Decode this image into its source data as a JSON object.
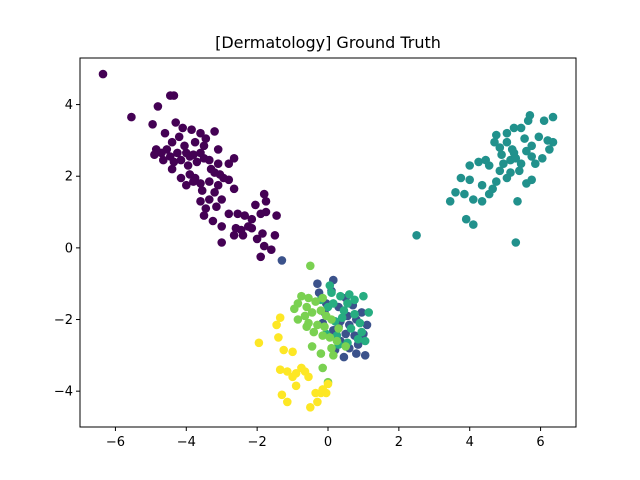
{
  "chart_data": {
    "type": "scatter",
    "title": "[Dermatology] Ground Truth",
    "xlabel": "",
    "ylabel": "",
    "xlim": [
      -7.0,
      7.0
    ],
    "ylim": [
      -5.0,
      5.3
    ],
    "xticks": [
      -6,
      -4,
      -2,
      0,
      2,
      4,
      6
    ],
    "yticks": [
      -4,
      -2,
      0,
      2,
      4
    ],
    "xtick_labels": [
      "−6",
      "−4",
      "−2",
      "0",
      "2",
      "4",
      "6"
    ],
    "ytick_labels": [
      "−4",
      "−2",
      "0",
      "2",
      "4"
    ],
    "grid": false,
    "legend": "none",
    "series": [
      {
        "color": "#440154",
        "points": [
          [
            -6.35,
            4.85
          ],
          [
            -5.55,
            3.65
          ],
          [
            -4.8,
            3.95
          ],
          [
            -4.95,
            3.45
          ],
          [
            -4.45,
            4.25
          ],
          [
            -4.35,
            4.25
          ],
          [
            -4.6,
            3.2
          ],
          [
            -4.3,
            3.5
          ],
          [
            -4.1,
            3.35
          ],
          [
            -4.2,
            3.1
          ],
          [
            -3.85,
            3.3
          ],
          [
            -3.6,
            3.2
          ],
          [
            -3.45,
            3.05
          ],
          [
            -3.2,
            3.25
          ],
          [
            -3.1,
            2.75
          ],
          [
            -3.5,
            2.85
          ],
          [
            -3.75,
            2.95
          ],
          [
            -3.9,
            2.55
          ],
          [
            -4.05,
            2.85
          ],
          [
            -4.25,
            2.65
          ],
          [
            -4.4,
            2.95
          ],
          [
            -4.55,
            2.75
          ],
          [
            -4.7,
            2.65
          ],
          [
            -4.85,
            2.75
          ],
          [
            -4.9,
            2.6
          ],
          [
            -4.65,
            2.45
          ],
          [
            -4.45,
            2.55
          ],
          [
            -4.35,
            2.4
          ],
          [
            -4.15,
            2.45
          ],
          [
            -4.0,
            2.65
          ],
          [
            -3.8,
            2.6
          ],
          [
            -3.6,
            2.65
          ],
          [
            -3.5,
            2.5
          ],
          [
            -3.35,
            2.45
          ],
          [
            -3.7,
            2.4
          ],
          [
            -3.95,
            2.3
          ],
          [
            -3.3,
            2.2
          ],
          [
            -3.1,
            2.35
          ],
          [
            -2.8,
            2.35
          ],
          [
            -2.65,
            2.5
          ],
          [
            -3.9,
            2.05
          ],
          [
            -3.75,
            1.95
          ],
          [
            -4.15,
            1.95
          ],
          [
            -4.0,
            1.75
          ],
          [
            -3.8,
            1.85
          ],
          [
            -3.6,
            1.8
          ],
          [
            -3.55,
            1.6
          ],
          [
            -3.35,
            1.85
          ],
          [
            -3.1,
            1.75
          ],
          [
            -3.2,
            1.55
          ],
          [
            -3.05,
            2.05
          ],
          [
            -2.8,
            1.9
          ],
          [
            -2.65,
            1.65
          ],
          [
            -3.35,
            1.35
          ],
          [
            -3.0,
            1.35
          ],
          [
            -3.15,
            1.15
          ],
          [
            -3.45,
            1.1
          ],
          [
            -3.5,
            0.9
          ],
          [
            -3.25,
            0.75
          ],
          [
            -3.0,
            0.6
          ],
          [
            -2.8,
            0.95
          ],
          [
            -2.55,
            0.95
          ],
          [
            -2.35,
            0.9
          ],
          [
            -2.15,
            0.8
          ],
          [
            -1.9,
            0.95
          ],
          [
            -1.75,
            1.0
          ],
          [
            -1.45,
            0.9
          ],
          [
            -1.75,
            1.3
          ],
          [
            -1.8,
            1.5
          ],
          [
            -2.05,
            1.2
          ],
          [
            -2.6,
            0.55
          ],
          [
            -2.4,
            0.35
          ],
          [
            -2.15,
            0.55
          ],
          [
            -2.0,
            0.25
          ],
          [
            -1.8,
            0.05
          ],
          [
            -1.6,
            -0.05
          ],
          [
            -1.5,
            0.35
          ],
          [
            -1.85,
            0.4
          ],
          [
            -2.45,
            0.5
          ],
          [
            -2.65,
            0.35
          ],
          [
            -2.25,
            0.6
          ],
          [
            -1.9,
            -0.25
          ],
          [
            -3.0,
            0.15
          ],
          [
            -3.6,
            1.3
          ],
          [
            -4.4,
            2.2
          ],
          [
            -3.2,
            2.1
          ],
          [
            -2.95,
            1.95
          ]
        ]
      },
      {
        "color": "#3b528b",
        "points": [
          [
            -1.3,
            -0.35
          ],
          [
            0.15,
            -0.9
          ],
          [
            -0.3,
            -1.0
          ],
          [
            0.5,
            -1.4
          ],
          [
            0.7,
            -1.6
          ],
          [
            0.3,
            -1.65
          ],
          [
            -0.05,
            -1.55
          ],
          [
            0.95,
            -1.8
          ],
          [
            0.8,
            -2.0
          ],
          [
            0.6,
            -2.15
          ],
          [
            0.35,
            -2.05
          ],
          [
            0.15,
            -2.3
          ],
          [
            -0.15,
            -2.1
          ],
          [
            0.5,
            -2.4
          ],
          [
            0.75,
            -2.45
          ],
          [
            1.0,
            -2.4
          ],
          [
            0.85,
            -2.7
          ],
          [
            0.6,
            -2.8
          ],
          [
            0.35,
            -2.6
          ],
          [
            0.2,
            -2.85
          ],
          [
            0.45,
            -3.05
          ],
          [
            0.8,
            -2.95
          ],
          [
            1.05,
            -3.0
          ],
          [
            0.1,
            -1.2
          ],
          [
            -0.25,
            -1.25
          ],
          [
            -0.1,
            -1.8
          ],
          [
            0.55,
            -1.9
          ],
          [
            1.1,
            -2.15
          ],
          [
            0.3,
            -2.2
          ]
        ]
      },
      {
        "color": "#21918c",
        "points": [
          [
            4.75,
            3.15
          ],
          [
            5.05,
            3.2
          ],
          [
            5.25,
            3.35
          ],
          [
            5.45,
            3.35
          ],
          [
            5.65,
            3.55
          ],
          [
            5.7,
            3.7
          ],
          [
            6.1,
            3.55
          ],
          [
            6.35,
            3.65
          ],
          [
            5.05,
            2.95
          ],
          [
            4.85,
            2.8
          ],
          [
            4.7,
            2.95
          ],
          [
            5.55,
            3.05
          ],
          [
            5.95,
            3.1
          ],
          [
            6.2,
            3.0
          ],
          [
            6.35,
            2.95
          ],
          [
            6.25,
            2.75
          ],
          [
            5.75,
            2.85
          ],
          [
            5.25,
            2.65
          ],
          [
            5.15,
            2.45
          ],
          [
            4.95,
            2.35
          ],
          [
            5.45,
            2.35
          ],
          [
            5.75,
            2.55
          ],
          [
            6.05,
            2.5
          ],
          [
            5.85,
            2.35
          ],
          [
            5.4,
            2.15
          ],
          [
            5.15,
            2.1
          ],
          [
            4.85,
            2.15
          ],
          [
            4.55,
            2.3
          ],
          [
            4.25,
            2.4
          ],
          [
            4.0,
            2.3
          ],
          [
            4.45,
            2.45
          ],
          [
            3.75,
            1.95
          ],
          [
            4.0,
            1.9
          ],
          [
            4.35,
            1.75
          ],
          [
            4.75,
            1.85
          ],
          [
            5.05,
            1.95
          ],
          [
            5.6,
            1.8
          ],
          [
            5.75,
            1.9
          ],
          [
            4.65,
            1.65
          ],
          [
            4.55,
            1.5
          ],
          [
            3.85,
            1.5
          ],
          [
            3.6,
            1.55
          ],
          [
            3.45,
            1.3
          ],
          [
            4.1,
            1.35
          ],
          [
            4.35,
            1.3
          ],
          [
            5.35,
            1.3
          ],
          [
            3.9,
            0.8
          ],
          [
            4.1,
            0.65
          ],
          [
            2.5,
            0.35
          ],
          [
            5.3,
            0.15
          ],
          [
            5.2,
            2.75
          ],
          [
            4.9,
            2.6
          ],
          [
            5.6,
            2.7
          ],
          [
            5.3,
            2.5
          ]
        ]
      },
      {
        "color": "#27ad81",
        "points": [
          [
            0.05,
            -1.05
          ],
          [
            0.35,
            -1.35
          ],
          [
            0.55,
            -1.55
          ],
          [
            0.75,
            -1.45
          ],
          [
            1.0,
            -1.35
          ],
          [
            1.15,
            -1.8
          ],
          [
            0.9,
            -2.1
          ],
          [
            0.65,
            -2.25
          ],
          [
            0.4,
            -1.95
          ],
          [
            0.2,
            -2.05
          ],
          [
            0.55,
            -2.65
          ],
          [
            0.85,
            -2.55
          ],
          [
            1.05,
            -2.6
          ],
          [
            0.25,
            -2.45
          ],
          [
            0.0,
            -1.65
          ],
          [
            -0.2,
            -1.45
          ],
          [
            0.15,
            -1.55
          ],
          [
            0.45,
            -1.75
          ],
          [
            0.75,
            -1.85
          ],
          [
            0.95,
            -2.35
          ],
          [
            0.3,
            -2.7
          ],
          [
            -0.05,
            -2.4
          ],
          [
            0.6,
            -1.3
          ],
          [
            0.1,
            -1.25
          ]
        ]
      },
      {
        "color": "#7ad151",
        "points": [
          [
            -0.5,
            -0.5
          ],
          [
            -0.75,
            -1.35
          ],
          [
            -0.55,
            -1.4
          ],
          [
            -0.85,
            -1.55
          ],
          [
            -0.6,
            -1.65
          ],
          [
            -0.35,
            -1.5
          ],
          [
            -0.15,
            -1.4
          ],
          [
            -0.45,
            -1.8
          ],
          [
            -0.2,
            -1.75
          ],
          [
            -0.05,
            -1.9
          ],
          [
            -0.65,
            -1.9
          ],
          [
            -0.85,
            -2.0
          ],
          [
            -0.55,
            -2.1
          ],
          [
            -0.3,
            -2.15
          ],
          [
            -0.1,
            -2.2
          ],
          [
            0.1,
            -2.0
          ],
          [
            0.3,
            -2.25
          ],
          [
            -0.4,
            -2.35
          ],
          [
            -0.15,
            -2.45
          ],
          [
            0.05,
            -2.5
          ],
          [
            0.25,
            -2.6
          ],
          [
            -0.45,
            -2.75
          ],
          [
            -0.2,
            -2.95
          ],
          [
            0.1,
            -2.8
          ],
          [
            0.15,
            -3.0
          ],
          [
            0.5,
            -2.75
          ],
          [
            -0.15,
            -3.35
          ],
          [
            0.0,
            -3.75
          ],
          [
            -0.6,
            -2.2
          ],
          [
            -0.95,
            -1.7
          ]
        ]
      },
      {
        "color": "#fde725",
        "points": [
          [
            -1.35,
            -1.95
          ],
          [
            -1.45,
            -2.15
          ],
          [
            -1.4,
            -2.5
          ],
          [
            -1.95,
            -2.65
          ],
          [
            -1.25,
            -2.85
          ],
          [
            -1.0,
            -2.9
          ],
          [
            -1.35,
            -3.4
          ],
          [
            -1.15,
            -3.45
          ],
          [
            -0.9,
            -3.5
          ],
          [
            -0.75,
            -3.35
          ],
          [
            -0.65,
            -3.45
          ],
          [
            -1.0,
            -3.6
          ],
          [
            -0.55,
            -3.6
          ],
          [
            -0.9,
            -3.85
          ],
          [
            -1.3,
            -4.1
          ],
          [
            -1.15,
            -4.3
          ],
          [
            -0.35,
            -4.05
          ],
          [
            -0.2,
            -4.05
          ],
          [
            -0.05,
            -4.05
          ],
          [
            -0.3,
            -4.3
          ],
          [
            -0.5,
            -4.45
          ],
          [
            0.0,
            -3.8
          ],
          [
            -0.15,
            -3.95
          ]
        ]
      }
    ]
  }
}
